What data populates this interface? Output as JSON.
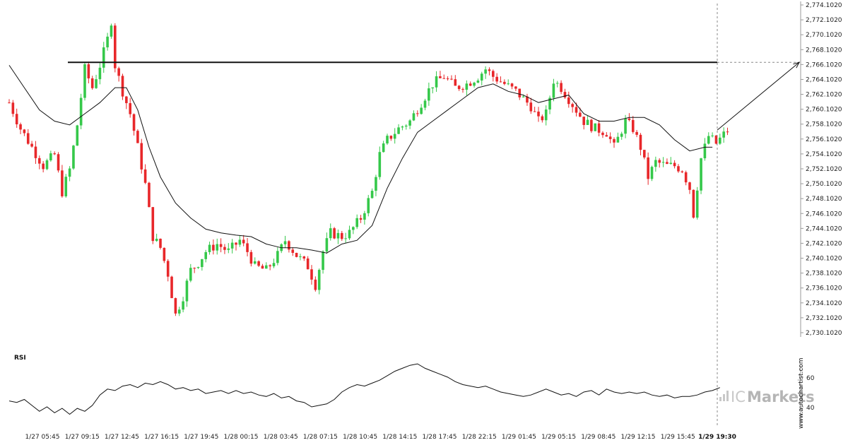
{
  "colors": {
    "bull": "#35c84a",
    "bear": "#e8272a",
    "line": "#111111",
    "grid_dash": "#888888"
  },
  "rsi": {
    "title": "RSI",
    "tick_labels": [
      "60",
      "40"
    ]
  },
  "watermark": {
    "vertical_text": "www.autochartist.com",
    "brand_light": "IC",
    "brand_bold": "Markets"
  },
  "chart_data": {
    "type": "candlestick",
    "resistance_level": 2766.4,
    "y_axis": {
      "tick_values": [
        2774.102,
        2772.102,
        2770.102,
        2768.102,
        2766.102,
        2764.102,
        2762.102,
        2760.102,
        2758.102,
        2756.102,
        2754.102,
        2752.102,
        2750.102,
        2748.102,
        2746.102,
        2744.102,
        2742.102,
        2740.102,
        2738.102,
        2736.102,
        2734.102,
        2732.102,
        2730.102
      ],
      "tick_labels": [
        "2,774.1020",
        "2,772.1020",
        "2,770.1020",
        "2,768.1020",
        "2,766.1020",
        "2,764.1020",
        "2,762.1020",
        "2,760.1020",
        "2,758.1020",
        "2,756.1020",
        "2,754.1020",
        "2,752.1020",
        "2,750.1020",
        "2,748.1020",
        "2,746.1020",
        "2,744.1020",
        "2,742.1020",
        "2,740.1020",
        "2,738.1020",
        "2,736.1020",
        "2,734.1020",
        "2,732.1020",
        "2,730.1020"
      ]
    },
    "x_axis": {
      "labels": [
        "1/27 05:45",
        "1/27 09:15",
        "1/27 12:45",
        "1/27 16:15",
        "1/27 19:45",
        "1/28 00:15",
        "1/28 03:45",
        "1/28 07:15",
        "1/28 10:45",
        "1/28 14:15",
        "1/28 17:45",
        "1/28 22:15",
        "1/29 01:45",
        "1/29 05:15",
        "1/29 08:45",
        "1/29 12:15",
        "1/29 15:45",
        "1/29 19:30"
      ],
      "bold_label": "1/29 19:30"
    },
    "forecast": {
      "from": 2757.3,
      "to": 2766.4
    },
    "price_path": [
      [
        0,
        2761.0
      ],
      [
        3,
        2757.5
      ],
      [
        6,
        2755.0
      ],
      [
        9,
        2752.5
      ],
      [
        12,
        2754.0
      ],
      [
        14,
        2749.0
      ],
      [
        16,
        2752.0
      ],
      [
        18,
        2758.0
      ],
      [
        20,
        2765.5
      ],
      [
        22,
        2763.0
      ],
      [
        24,
        2766.0
      ],
      [
        26,
        2769.5
      ],
      [
        27,
        2772.0
      ],
      [
        28,
        2766.0
      ],
      [
        30,
        2762.5
      ],
      [
        32,
        2759.5
      ],
      [
        34,
        2755.0
      ],
      [
        36,
        2750.0
      ],
      [
        38,
        2743.0
      ],
      [
        40,
        2741.5
      ],
      [
        42,
        2738.0
      ],
      [
        44,
        2732.5
      ],
      [
        46,
        2735.0
      ],
      [
        48,
        2738.5
      ],
      [
        50,
        2739.5
      ],
      [
        52,
        2741.0
      ],
      [
        55,
        2742.0
      ],
      [
        58,
        2741.0
      ],
      [
        61,
        2742.5
      ],
      [
        63,
        2741.0
      ],
      [
        65,
        2739.0
      ],
      [
        68,
        2738.5
      ],
      [
        71,
        2740.5
      ],
      [
        73,
        2742.5
      ],
      [
        76,
        2740.5
      ],
      [
        79,
        2739.0
      ],
      [
        81,
        2736.5
      ],
      [
        83,
        2741.0
      ],
      [
        85,
        2743.5
      ],
      [
        88,
        2743.0
      ],
      [
        90,
        2743.5
      ],
      [
        93,
        2745.5
      ],
      [
        96,
        2749.0
      ],
      [
        98,
        2754.0
      ],
      [
        100,
        2756.0
      ],
      [
        103,
        2757.5
      ],
      [
        106,
        2758.5
      ],
      [
        109,
        2761.0
      ],
      [
        112,
        2763.5
      ],
      [
        115,
        2764.5
      ],
      [
        118,
        2763.0
      ],
      [
        121,
        2763.5
      ],
      [
        124,
        2764.5
      ],
      [
        126,
        2765.5
      ],
      [
        128,
        2764.5
      ],
      [
        131,
        2763.5
      ],
      [
        134,
        2762.5
      ],
      [
        136,
        2761.5
      ],
      [
        138,
        2760.5
      ],
      [
        140,
        2758.5
      ],
      [
        142,
        2759.5
      ],
      [
        144,
        2764.0
      ],
      [
        146,
        2763.0
      ],
      [
        148,
        2761.5
      ],
      [
        150,
        2760.0
      ],
      [
        152,
        2758.5
      ],
      [
        155,
        2757.5
      ],
      [
        158,
        2757.0
      ],
      [
        160,
        2755.0
      ],
      [
        163,
        2758.5
      ],
      [
        165,
        2757.5
      ],
      [
        167,
        2755.0
      ],
      [
        169,
        2751.0
      ],
      [
        171,
        2753.0
      ],
      [
        174,
        2752.5
      ],
      [
        176,
        2752.5
      ],
      [
        178,
        2752.0
      ],
      [
        180,
        2749.5
      ],
      [
        181,
        2746.0
      ],
      [
        183,
        2753.5
      ],
      [
        185,
        2756.5
      ],
      [
        187,
        2755.5
      ],
      [
        190,
        2757.3
      ]
    ],
    "ma_path": [
      [
        0,
        2766.0
      ],
      [
        4,
        2763.0
      ],
      [
        8,
        2760.0
      ],
      [
        12,
        2758.5
      ],
      [
        16,
        2758.0
      ],
      [
        20,
        2759.5
      ],
      [
        24,
        2761.0
      ],
      [
        28,
        2763.0
      ],
      [
        31,
        2763.0
      ],
      [
        34,
        2760.0
      ],
      [
        37,
        2755.0
      ],
      [
        40,
        2751.0
      ],
      [
        44,
        2747.5
      ],
      [
        48,
        2745.5
      ],
      [
        52,
        2744.0
      ],
      [
        56,
        2743.5
      ],
      [
        60,
        2743.2
      ],
      [
        64,
        2743.0
      ],
      [
        68,
        2742.0
      ],
      [
        72,
        2741.5
      ],
      [
        76,
        2741.5
      ],
      [
        80,
        2741.2
      ],
      [
        84,
        2740.8
      ],
      [
        88,
        2742.0
      ],
      [
        92,
        2742.5
      ],
      [
        96,
        2744.5
      ],
      [
        100,
        2749.5
      ],
      [
        104,
        2753.5
      ],
      [
        108,
        2757.0
      ],
      [
        112,
        2758.5
      ],
      [
        116,
        2760.0
      ],
      [
        120,
        2761.5
      ],
      [
        124,
        2763.0
      ],
      [
        128,
        2763.5
      ],
      [
        132,
        2762.5
      ],
      [
        136,
        2762.0
      ],
      [
        140,
        2761.0
      ],
      [
        144,
        2761.5
      ],
      [
        148,
        2762.0
      ],
      [
        152,
        2759.5
      ],
      [
        156,
        2758.5
      ],
      [
        160,
        2758.5
      ],
      [
        164,
        2759.0
      ],
      [
        168,
        2759.0
      ],
      [
        172,
        2758.0
      ],
      [
        176,
        2756.0
      ],
      [
        180,
        2754.5
      ],
      [
        184,
        2755.0
      ],
      [
        186,
        2755.0
      ]
    ],
    "rsi_series": [
      [
        0,
        44
      ],
      [
        2,
        43
      ],
      [
        4,
        45
      ],
      [
        6,
        41
      ],
      [
        8,
        37
      ],
      [
        10,
        40
      ],
      [
        12,
        36
      ],
      [
        14,
        39
      ],
      [
        16,
        35
      ],
      [
        18,
        39
      ],
      [
        20,
        37
      ],
      [
        22,
        41
      ],
      [
        24,
        48
      ],
      [
        26,
        52
      ],
      [
        28,
        51
      ],
      [
        30,
        54
      ],
      [
        32,
        55
      ],
      [
        34,
        53
      ],
      [
        36,
        56
      ],
      [
        38,
        55
      ],
      [
        40,
        57
      ],
      [
        42,
        55
      ],
      [
        44,
        52
      ],
      [
        46,
        53
      ],
      [
        48,
        51
      ],
      [
        50,
        52
      ],
      [
        52,
        49
      ],
      [
        54,
        50
      ],
      [
        56,
        51
      ],
      [
        58,
        49
      ],
      [
        60,
        51
      ],
      [
        62,
        49
      ],
      [
        64,
        50
      ],
      [
        66,
        48
      ],
      [
        68,
        47
      ],
      [
        70,
        49
      ],
      [
        72,
        46
      ],
      [
        74,
        47
      ],
      [
        76,
        44
      ],
      [
        78,
        43
      ],
      [
        80,
        40
      ],
      [
        82,
        41
      ],
      [
        84,
        42
      ],
      [
        86,
        45
      ],
      [
        88,
        50
      ],
      [
        90,
        53
      ],
      [
        92,
        55
      ],
      [
        94,
        54
      ],
      [
        96,
        56
      ],
      [
        98,
        58
      ],
      [
        100,
        61
      ],
      [
        102,
        64
      ],
      [
        104,
        66
      ],
      [
        106,
        68
      ],
      [
        108,
        69
      ],
      [
        110,
        66
      ],
      [
        112,
        64
      ],
      [
        114,
        62
      ],
      [
        116,
        60
      ],
      [
        118,
        57
      ],
      [
        120,
        55
      ],
      [
        122,
        54
      ],
      [
        124,
        53
      ],
      [
        126,
        54
      ],
      [
        128,
        52
      ],
      [
        130,
        50
      ],
      [
        132,
        49
      ],
      [
        134,
        48
      ],
      [
        136,
        47
      ],
      [
        138,
        48
      ],
      [
        140,
        50
      ],
      [
        142,
        52
      ],
      [
        144,
        50
      ],
      [
        146,
        48
      ],
      [
        148,
        49
      ],
      [
        150,
        47
      ],
      [
        152,
        50
      ],
      [
        154,
        51
      ],
      [
        156,
        48
      ],
      [
        158,
        52
      ],
      [
        160,
        50
      ],
      [
        162,
        49
      ],
      [
        164,
        50
      ],
      [
        166,
        49
      ],
      [
        168,
        50
      ],
      [
        170,
        48
      ],
      [
        172,
        47
      ],
      [
        174,
        48
      ],
      [
        176,
        46
      ],
      [
        178,
        47
      ],
      [
        180,
        47
      ],
      [
        182,
        48
      ],
      [
        184,
        50
      ],
      [
        186,
        51
      ],
      [
        188,
        53
      ]
    ]
  }
}
